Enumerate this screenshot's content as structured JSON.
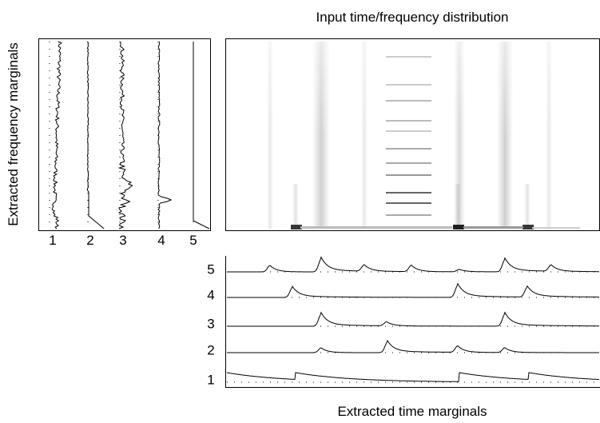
{
  "title": "Input time/frequency distribution",
  "frequency_marginals": {
    "label": "Extracted frequency marginals",
    "components": [
      "1",
      "2",
      "3",
      "4",
      "5"
    ]
  },
  "time_marginals": {
    "label": "Extracted time marginals",
    "components": [
      "5",
      "4",
      "3",
      "2",
      "1"
    ]
  }
}
